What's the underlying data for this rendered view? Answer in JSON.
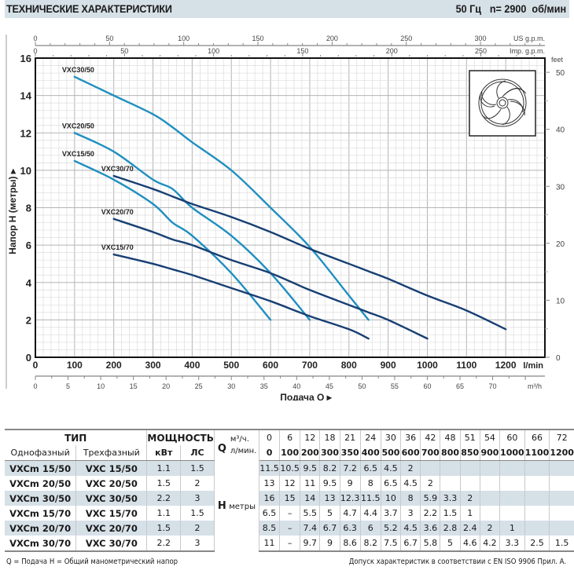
{
  "header": {
    "title": "ТЕХНИЧЕСКИЕ ХАРАКТЕРИСТИКИ",
    "frequency": "50 Гц",
    "speed": "n= 2900  об/мин"
  },
  "chart_data": {
    "type": "line",
    "title": "",
    "xlabel": "Подача Q",
    "ylabel": "Напор H (метры)",
    "x_unit_primary": "l/min",
    "x_unit_m3h": "m³/h",
    "x_unit_us": "US g.p.m.",
    "x_unit_imp": "Imp. g.p.m.",
    "y_unit_right": "feet",
    "xlim": [
      0,
      1300
    ],
    "ylim": [
      0,
      16
    ],
    "grid": true,
    "x_ticks": [
      0,
      100,
      200,
      300,
      400,
      500,
      600,
      700,
      800,
      900,
      1000,
      1100,
      1200
    ],
    "y_ticks": [
      0,
      2,
      4,
      6,
      8,
      10,
      12,
      14,
      16
    ],
    "m3h_ticks": [
      0,
      5,
      10,
      15,
      20,
      25,
      30,
      35,
      40,
      45,
      50,
      55,
      60,
      65,
      70
    ],
    "us_gpm_ticks": [
      0,
      50,
      100,
      150,
      200,
      250,
      300
    ],
    "imp_gpm_ticks": [
      0,
      50,
      100,
      150,
      200,
      250
    ],
    "feet_ticks": [
      0,
      10,
      20,
      30,
      40,
      50
    ],
    "series": [
      {
        "name": "VXC30/50",
        "color": "#1f8fc0",
        "x": [
          100,
          200,
          300,
          350,
          400,
          500,
          600,
          700,
          800,
          850
        ],
        "y": [
          15,
          14,
          13,
          12.3,
          11.5,
          10,
          8,
          5.9,
          3.3,
          2
        ]
      },
      {
        "name": "VXC20/50",
        "color": "#1f8fc0",
        "x": [
          100,
          200,
          300,
          350,
          400,
          500,
          600,
          700
        ],
        "y": [
          12,
          11,
          9.5,
          9,
          8,
          6.5,
          4.5,
          2
        ]
      },
      {
        "name": "VXC15/50",
        "color": "#1f8fc0",
        "x": [
          100,
          200,
          300,
          350,
          400,
          500,
          600
        ],
        "y": [
          10.5,
          9.5,
          8.2,
          7.2,
          6.5,
          4.5,
          2
        ]
      },
      {
        "name": "VXC30/70",
        "color": "#173f73",
        "x": [
          200,
          300,
          350,
          400,
          500,
          600,
          700,
          800,
          850,
          900,
          1000,
          1100,
          1200
        ],
        "y": [
          9.7,
          9,
          8.6,
          8.2,
          7.5,
          6.7,
          5.8,
          5,
          4.6,
          4.2,
          3.3,
          2.5,
          1.5
        ]
      },
      {
        "name": "VXC20/70",
        "color": "#173f73",
        "x": [
          200,
          300,
          350,
          400,
          500,
          600,
          700,
          800,
          850,
          900,
          1000
        ],
        "y": [
          7.4,
          6.7,
          6.3,
          6,
          5.2,
          4.5,
          3.6,
          2.8,
          2.4,
          2,
          1
        ]
      },
      {
        "name": "VXC15/70",
        "color": "#173f73",
        "x": [
          200,
          300,
          350,
          400,
          500,
          600,
          700,
          800,
          850
        ],
        "y": [
          5.5,
          5,
          4.7,
          4.4,
          3.7,
          3,
          2.2,
          1.5,
          1
        ]
      }
    ]
  },
  "impeller_icon": "impeller-icon",
  "table": {
    "type_header": "ТИП",
    "power_header": "МОЩНОСТЬ",
    "single_phase": "Однофазный",
    "three_phase": "Трехфазный",
    "kw": "кВт",
    "hp": "ЛС",
    "q_label": "Q",
    "q_unit_m3h": "м³/ч.",
    "q_unit_lmin": "л/мин.",
    "h_label": "H",
    "h_unit": "метры",
    "q_m3h": [
      "0",
      "6",
      "12",
      "18",
      "21",
      "24",
      "30",
      "36",
      "42",
      "48",
      "51",
      "54",
      "60",
      "66",
      "72"
    ],
    "q_lmin": [
      "0",
      "100",
      "200",
      "300",
      "350",
      "400",
      "500",
      "600",
      "700",
      "800",
      "850",
      "900",
      "1000",
      "1100",
      "1200"
    ],
    "rows": [
      {
        "single": "VXCm 15/50",
        "three": "VXC 15/50",
        "kw": "1.1",
        "hp": "1.5",
        "h": [
          "11.5",
          "10.5",
          "9.5",
          "8.2",
          "7.2",
          "6.5",
          "4.5",
          "2",
          "",
          "",
          "",
          "",
          "",
          "",
          ""
        ]
      },
      {
        "single": "VXCm 20/50",
        "three": "VXC 20/50",
        "kw": "1.5",
        "hp": "2",
        "h": [
          "13",
          "12",
          "11",
          "9.5",
          "9",
          "8",
          "6.5",
          "4.5",
          "2",
          "",
          "",
          "",
          "",
          "",
          ""
        ]
      },
      {
        "single": "VXCm 30/50",
        "three": "VXC 30/50",
        "kw": "2.2",
        "hp": "3",
        "h": [
          "16",
          "15",
          "14",
          "13",
          "12.3",
          "11.5",
          "10",
          "8",
          "5.9",
          "3.3",
          "2",
          "",
          "",
          "",
          ""
        ]
      },
      {
        "single": "VXCm 15/70",
        "three": "VXC 15/70",
        "kw": "1.1",
        "hp": "1.5",
        "h": [
          "6.5",
          "–",
          "5.5",
          "5",
          "4.7",
          "4.4",
          "3.7",
          "3",
          "2.2",
          "1.5",
          "1",
          "",
          "",
          "",
          ""
        ]
      },
      {
        "single": "VXCm 20/70",
        "three": "VXC 20/70",
        "kw": "1.5",
        "hp": "2",
        "h": [
          "8.5",
          "–",
          "7.4",
          "6.7",
          "6.3",
          "6",
          "5.2",
          "4.5",
          "3.6",
          "2.8",
          "2.4",
          "2",
          "1",
          "",
          ""
        ]
      },
      {
        "single": "VXCm 30/70",
        "three": "VXC 30/70",
        "kw": "2.2",
        "hp": "3",
        "h": [
          "11",
          "–",
          "9.7",
          "9",
          "8.6",
          "8.2",
          "7.5",
          "6.7",
          "5.8",
          "5",
          "4.6",
          "4.2",
          "3.3",
          "2.5",
          "1.5"
        ]
      }
    ]
  },
  "footer": {
    "legend": "Q = Подача   H = Общий манометрический напор",
    "tolerance": "Допуск характеристик в соответствии с EN ISO 9906 Прил. А."
  }
}
